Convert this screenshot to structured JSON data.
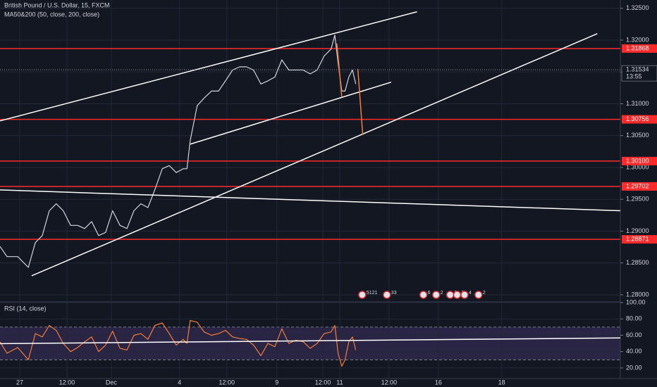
{
  "chart_data": [
    {
      "type": "line",
      "title": "British Pound / U.S. Dollar, 15, FXCM",
      "subtitle": "MA50&200 (50, close, 200, close)",
      "xlim": [
        0,
        151
      ],
      "xticks": [
        {
          "value": 4.8,
          "label": "27"
        },
        {
          "value": 16.3,
          "label": "12:00"
        },
        {
          "value": 27.1,
          "label": "Dec"
        },
        {
          "value": 43.7,
          "label": "4"
        },
        {
          "value": 55.2,
          "label": "12:00"
        },
        {
          "value": 67.4,
          "label": "9"
        },
        {
          "value": 78.6,
          "label": "12:00"
        },
        {
          "value": 82.7,
          "label": "11"
        },
        {
          "value": 94.7,
          "label": "12:00"
        },
        {
          "value": 106.7,
          "label": "16"
        },
        {
          "value": 122.1,
          "label": "18"
        }
      ],
      "ylim": [
        1.279,
        1.3263
      ],
      "yticks": [
        {
          "value": 1.28,
          "label": "1.28000"
        },
        {
          "value": 1.285,
          "label": "1.28500"
        },
        {
          "value": 1.29,
          "label": "1.29000"
        },
        {
          "value": 1.295,
          "label": "1.29500"
        },
        {
          "value": 1.3,
          "label": "1.30000"
        },
        {
          "value": 1.305,
          "label": "1.30500"
        },
        {
          "value": 1.31,
          "label": "1.31000"
        },
        {
          "value": 1.315,
          "label": "1.31500"
        },
        {
          "value": 1.32,
          "label": "1.32000"
        },
        {
          "value": 1.325,
          "label": "1.32500"
        }
      ],
      "x": [
        0,
        1.7,
        4.3,
        6.9,
        8.6,
        10.3,
        12.0,
        13.7,
        15.4,
        17.2,
        18.9,
        20.6,
        22.3,
        24.0,
        25.7,
        27.4,
        29.2,
        30.9,
        32.6,
        34.3,
        36.0,
        37.7,
        39.5,
        41.2,
        42.9,
        44.6,
        45.5,
        46.3,
        48.0,
        49.7,
        51.5,
        53.2,
        54.9,
        56.6,
        58.3,
        60.0,
        61.7,
        63.5,
        65.2,
        66.9,
        68.6,
        70.3,
        72.0,
        73.8,
        75.5,
        77.2,
        78.9,
        80.6,
        81.5,
        82.3,
        83.2,
        84.0,
        84.9,
        85.8,
        86.6
      ],
      "series": [
        {
          "color": "#d1d4dc",
          "values": [
            1.2876,
            1.286,
            1.286,
            1.2843,
            1.2882,
            1.2893,
            1.2932,
            1.2943,
            1.2932,
            1.2909,
            1.2909,
            1.2904,
            1.2915,
            1.2893,
            1.2898,
            1.2932,
            1.2909,
            1.2904,
            1.2932,
            1.2943,
            1.2937,
            1.2965,
            1.2998,
            1.3003,
            1.2992,
            1.2998,
            1.2998,
            1.3042,
            1.3097,
            1.3109,
            1.312,
            1.312,
            1.3136,
            1.3153,
            1.3158,
            1.3158,
            1.3153,
            1.3131,
            1.3136,
            1.3142,
            1.3169,
            1.3153,
            1.3153,
            1.3153,
            1.3147,
            1.3153,
            1.3175,
            1.3186,
            1.3208,
            1.3164,
            1.312,
            1.312,
            1.3142,
            1.3153,
            1.3131
          ]
        }
      ],
      "levels": [
        1.31868,
        1.30756,
        {
          "value": 1.301,
          "label": "1.30100"
        },
        1.29702,
        1.28871
      ],
      "level_color": "#ff2a2a",
      "last_price": 1.31534,
      "countdown": "13:55",
      "trendlines": [
        {
          "color": "#ffffff",
          "x": [
            0,
            101.5
          ],
          "y": [
            1.30731,
            1.32445
          ]
        },
        {
          "color": "#ffffff",
          "x": [
            46.3,
            95.2
          ],
          "y": [
            1.30366,
            1.31339
          ]
        },
        {
          "color": "#ffffff",
          "x": [
            7.7,
            145.4
          ],
          "y": [
            1.28298,
            1.32102
          ]
        },
        {
          "color": "#ffffff",
          "x": [
            0,
            151
          ],
          "y": [
            1.29647,
            1.2932
          ]
        },
        {
          "color": "#f57c38",
          "x": [
            82.0,
            83.2
          ],
          "y": [
            1.31947,
            1.31107
          ]
        },
        {
          "color": "#f57c38",
          "x": [
            87.1,
            88.3
          ],
          "y": [
            1.31549,
            1.3051
          ]
        }
      ],
      "events": [
        {
          "x": 89.2,
          "label": "5121"
        },
        {
          "x": 95.2,
          "label": "33"
        },
        {
          "x": 104.1,
          "label": "6"
        },
        {
          "x": 107.2,
          "label": "2"
        },
        {
          "x": 110.6,
          "label": "3"
        },
        {
          "x": 112.3,
          "label": "3"
        },
        {
          "x": 114.1,
          "label": "4"
        },
        {
          "x": 117.5,
          "label": "2"
        }
      ]
    },
    {
      "type": "line",
      "title": "RSI (14, close)",
      "xlim": [
        0,
        151
      ],
      "ylim": [
        7,
        100
      ],
      "yticks": [
        {
          "value": 20,
          "label": "20.00"
        },
        {
          "value": 40,
          "label": "40.00"
        },
        {
          "value": 60,
          "label": "60.00"
        },
        {
          "value": 80,
          "label": "80.00"
        },
        {
          "value": 100,
          "label": "100.00"
        }
      ],
      "band": [
        30,
        70
      ],
      "band_color": "#7e57c2",
      "x": [
        0,
        1.7,
        4.3,
        6.9,
        8.6,
        10.3,
        12.0,
        13.7,
        15.4,
        17.2,
        18.9,
        20.6,
        22.3,
        24.0,
        25.7,
        27.4,
        29.2,
        30.9,
        32.6,
        34.3,
        36.0,
        37.7,
        39.5,
        41.2,
        42.9,
        44.6,
        45.5,
        46.3,
        48.0,
        49.7,
        51.5,
        53.2,
        54.9,
        56.6,
        58.3,
        60.0,
        61.7,
        63.5,
        65.2,
        66.9,
        68.6,
        70.3,
        72.0,
        73.8,
        75.5,
        77.2,
        78.9,
        80.6,
        81.5,
        82.3,
        83.2,
        84.0,
        84.9,
        85.8,
        86.6
      ],
      "series": [
        {
          "color": "#f57c38",
          "values": [
            52,
            38,
            45,
            30,
            62,
            58,
            72,
            66,
            50,
            40,
            45,
            52,
            58,
            40,
            48,
            65,
            44,
            42,
            60,
            62,
            55,
            72,
            75,
            62,
            48,
            55,
            50,
            78,
            76,
            64,
            60,
            62,
            66,
            58,
            56,
            55,
            48,
            35,
            50,
            46,
            68,
            50,
            54,
            52,
            44,
            50,
            62,
            64,
            72,
            38,
            22,
            30,
            52,
            58,
            42
          ]
        }
      ],
      "trendlines": [
        {
          "color": "#ffffff",
          "x": [
            0,
            151
          ],
          "y": [
            49.7,
            56.7
          ]
        }
      ]
    }
  ]
}
